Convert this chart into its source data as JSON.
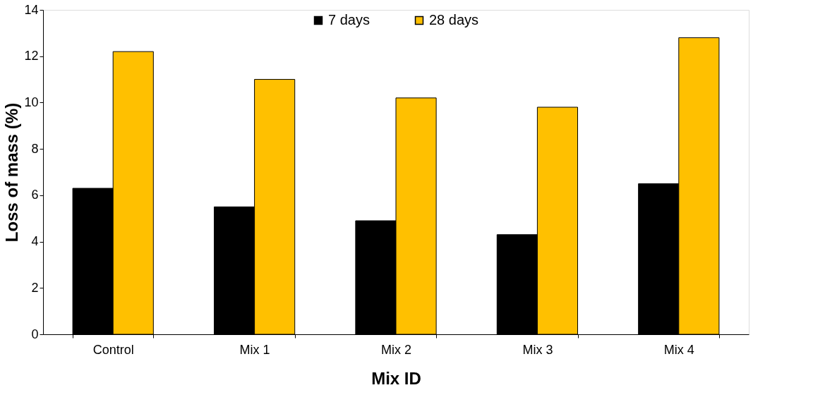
{
  "chart_data": {
    "type": "bar",
    "xlabel": "Mix ID",
    "ylabel": "Loss of mass (%)",
    "categories": [
      "Control",
      "Mix 1",
      "Mix 2",
      "Mix 3",
      "Mix 4"
    ],
    "series": [
      {
        "name": "7 days",
        "color": "#000000",
        "values": [
          6.3,
          5.5,
          4.9,
          4.3,
          6.5
        ]
      },
      {
        "name": "28 days",
        "color": "#ffc000",
        "values": [
          12.2,
          11.0,
          10.2,
          9.8,
          12.8
        ]
      }
    ],
    "ylim": [
      0,
      14
    ],
    "yticks": [
      0,
      2,
      4,
      6,
      8,
      10,
      12,
      14
    ],
    "grid": false,
    "legend": "top"
  }
}
